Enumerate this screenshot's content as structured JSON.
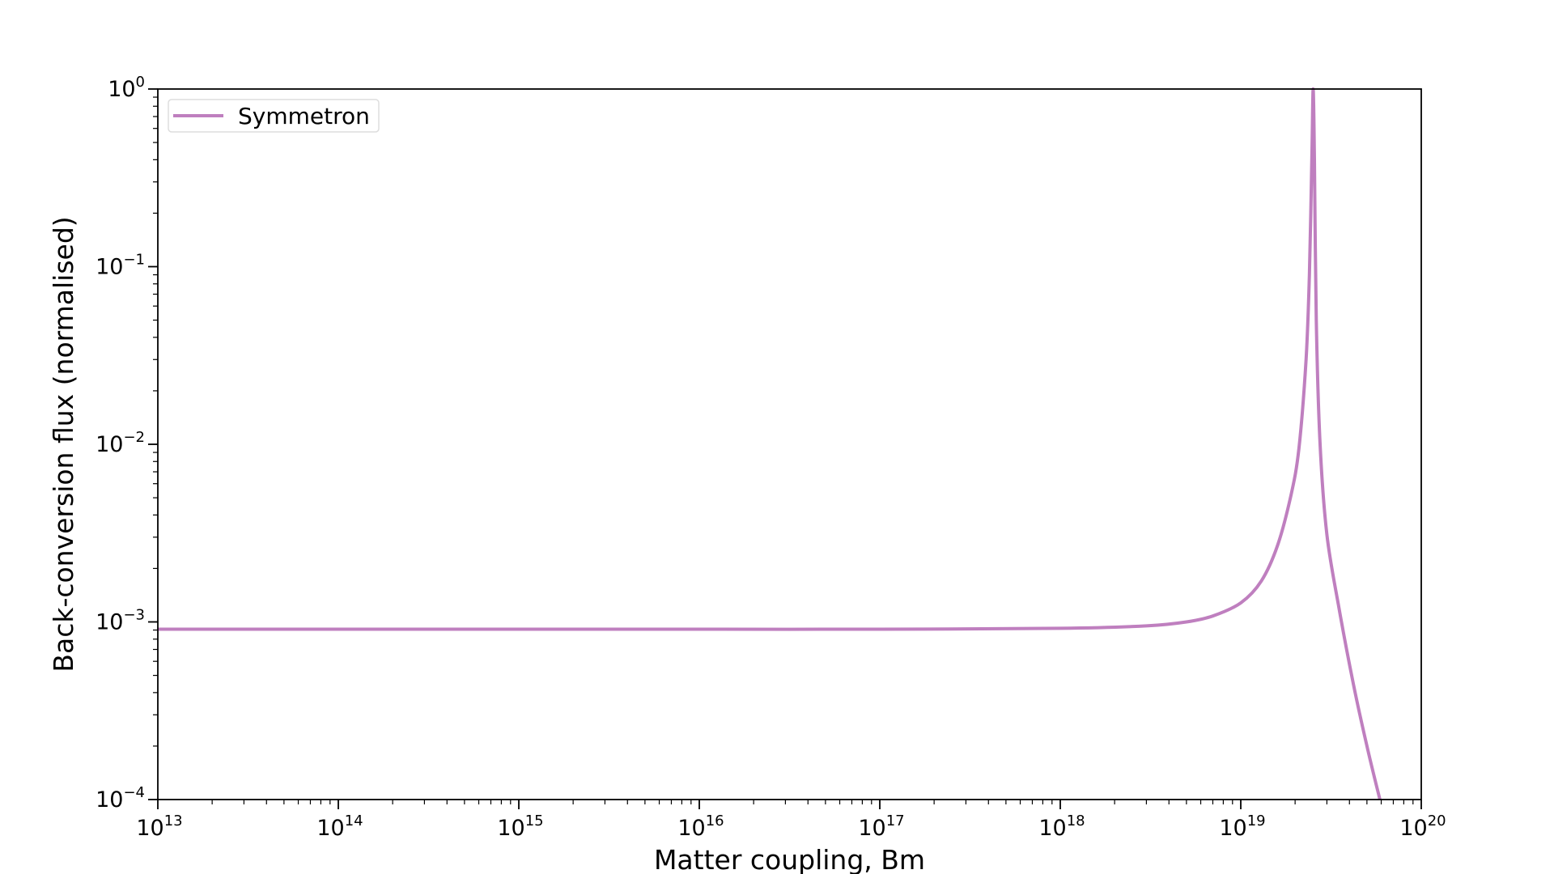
{
  "chart_data": {
    "type": "line",
    "xlabel": "Matter coupling, Bm",
    "ylabel": "Back-conversion flux (normalised)",
    "xscale": "log",
    "yscale": "log",
    "xlim": [
      10000000000000.0,
      1e+20
    ],
    "ylim": [
      0.0001,
      1
    ],
    "x_tick_labels": [
      {
        "base": "10",
        "exp": "13"
      },
      {
        "base": "10",
        "exp": "14"
      },
      {
        "base": "10",
        "exp": "15"
      },
      {
        "base": "10",
        "exp": "16"
      },
      {
        "base": "10",
        "exp": "17"
      },
      {
        "base": "10",
        "exp": "18"
      },
      {
        "base": "10",
        "exp": "19"
      },
      {
        "base": "10",
        "exp": "20"
      }
    ],
    "y_tick_labels": [
      {
        "base": "10",
        "exp": "−4"
      },
      {
        "base": "10",
        "exp": "−3"
      },
      {
        "base": "10",
        "exp": "−2"
      },
      {
        "base": "10",
        "exp": "−1"
      },
      {
        "base": "10",
        "exp": "0"
      }
    ],
    "grid": false,
    "legend_position": "top-left",
    "series": [
      {
        "name": "Symmetron",
        "color": "#bf7fbf",
        "x": [
          10000000000000.0,
          100000000000000.0,
          1000000000000000.0,
          1e+16,
          1e+17,
          1e+18,
          3e+18,
          5e+18,
          7e+18,
          1e+19,
          1.3e+19,
          1.6e+19,
          1.9e+19,
          2.1e+19,
          2.3e+19,
          2.4e+19,
          2.48e+19,
          2.52e+19,
          2.56e+19,
          2.62e+19,
          2.75e+19,
          3e+19,
          3.5e+19,
          4.2e+19,
          5e+19,
          5.9e+19
        ],
        "y": [
          0.00091,
          0.00091,
          0.00091,
          0.00091,
          0.00091,
          0.00092,
          0.00095,
          0.001,
          0.00108,
          0.00128,
          0.0017,
          0.0027,
          0.0052,
          0.0095,
          0.03,
          0.09,
          0.45,
          1.0,
          0.4,
          0.05,
          0.01,
          0.0031,
          0.0012,
          0.00045,
          0.0002,
          0.0001
        ]
      }
    ]
  }
}
